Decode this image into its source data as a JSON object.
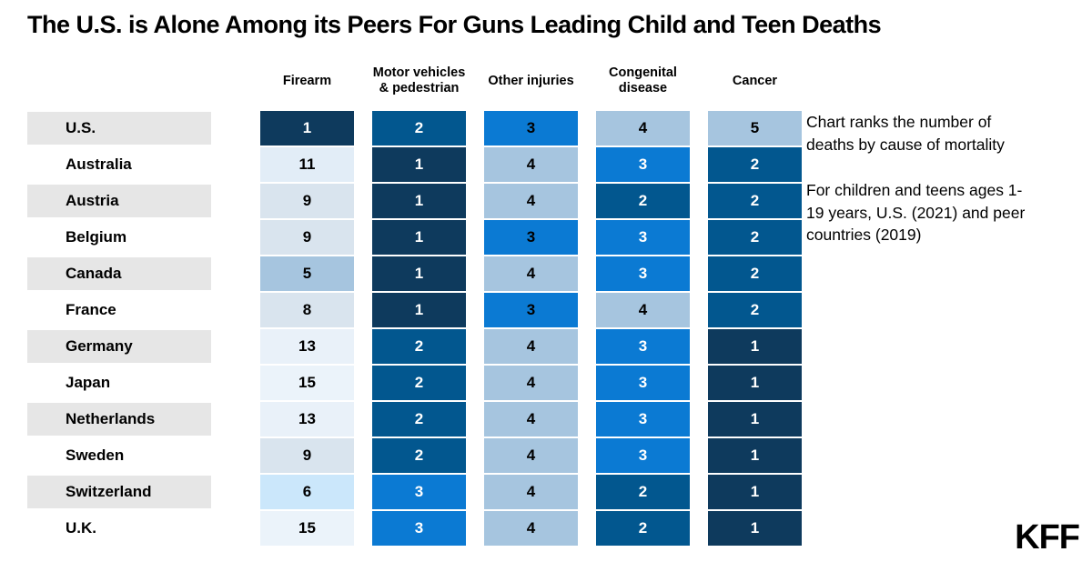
{
  "title": "The U.S. is Alone Among its Peers For Guns Leading Child and Teen Deaths",
  "annotation": {
    "para1": "Chart ranks the number of deaths by cause of mortality",
    "para2": "For children and teens ages 1-19 years, U.S. (2021) and peer countries (2019)"
  },
  "logo_text": "KFF",
  "colors": {
    "row_label_shaded": "#e6e6e6",
    "text_dark": "#000000",
    "text_light": "#ffffff"
  },
  "chart_data": {
    "type": "heatmap",
    "title": "The U.S. is Alone Among its Peers For Guns Leading Child and Teen Deaths",
    "legend_note": "Chart ranks the number of deaths by cause of mortality",
    "population_note": "For children and teens ages 1-19 years, U.S. (2021) and peer countries (2019)",
    "columns": [
      "Firearm",
      "Motor vehicles & pedestrian",
      "Other injuries",
      "Congenital disease",
      "Cancer"
    ],
    "rows": [
      "U.S.",
      "Australia",
      "Austria",
      "Belgium",
      "Canada",
      "France",
      "Germany",
      "Japan",
      "Netherlands",
      "Sweden",
      "Switzerland",
      "U.K."
    ],
    "values": [
      [
        1,
        2,
        3,
        4,
        5
      ],
      [
        11,
        1,
        4,
        3,
        2
      ],
      [
        9,
        1,
        4,
        2,
        2
      ],
      [
        9,
        1,
        3,
        3,
        2
      ],
      [
        5,
        1,
        4,
        3,
        2
      ],
      [
        8,
        1,
        3,
        4,
        2
      ],
      [
        13,
        2,
        4,
        3,
        1
      ],
      [
        15,
        2,
        4,
        3,
        1
      ],
      [
        13,
        2,
        4,
        3,
        1
      ],
      [
        9,
        2,
        4,
        3,
        1
      ],
      [
        6,
        3,
        4,
        2,
        1
      ],
      [
        15,
        3,
        4,
        2,
        1
      ]
    ],
    "color_scale": {
      "1": "#0e3a5d",
      "2": "#02578f",
      "3": "#0b7ad3",
      "4": "#a6c5df",
      "5": "#a6c5df",
      "6": "#cbe7fb",
      "8": "#d9e4ee",
      "9": "#d9e4ee",
      "11": "#e2edf7",
      "13": "#e9f1f9",
      "15": "#ebf3fa"
    },
    "text_colors": [
      [
        "w",
        "w",
        "b",
        "b",
        "b"
      ],
      [
        "b",
        "w",
        "b",
        "w",
        "w"
      ],
      [
        "b",
        "w",
        "b",
        "w",
        "w"
      ],
      [
        "b",
        "w",
        "b",
        "w",
        "w"
      ],
      [
        "b",
        "w",
        "b",
        "w",
        "w"
      ],
      [
        "b",
        "w",
        "b",
        "b",
        "w"
      ],
      [
        "b",
        "w",
        "b",
        "w",
        "w"
      ],
      [
        "b",
        "w",
        "b",
        "w",
        "w"
      ],
      [
        "b",
        "w",
        "b",
        "w",
        "w"
      ],
      [
        "b",
        "w",
        "b",
        "w",
        "w"
      ],
      [
        "b",
        "w",
        "b",
        "w",
        "w"
      ],
      [
        "b",
        "w",
        "b",
        "w",
        "w"
      ]
    ]
  }
}
